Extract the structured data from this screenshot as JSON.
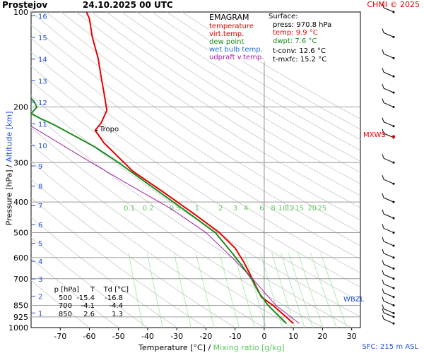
{
  "header": {
    "station": "Prostejov",
    "datetime": "24.10.2025 00 UTC",
    "credit": "CHMI © 2025"
  },
  "legend": {
    "title": "EMAGRAM",
    "items": [
      {
        "label": "temperature",
        "color": "#e60000"
      },
      {
        "label": "virt.temp.",
        "color": "#e60000"
      },
      {
        "label": "dew point",
        "color": "#1a8c1a"
      },
      {
        "label": "wet bulb temp.",
        "color": "#1e6fd8"
      },
      {
        "label": "udpraft v.temp.",
        "color": "#a020a0"
      }
    ]
  },
  "surface": {
    "title": "Surface:",
    "press": "press: 970.8 hPa",
    "temp": "temp: 9.9 °C",
    "dwpt": "dwpt: 7.6 °C",
    "tconv": "t-conv: 12.6 °C",
    "tmxfc": "t-mxfc: 15.2 °C"
  },
  "table": {
    "headers": [
      "p [hPa]",
      "T",
      "Td [°C]"
    ],
    "rows": [
      [
        "500",
        "-15.4",
        "-16.8"
      ],
      [
        "700",
        "-4.1",
        "-4.4"
      ],
      [
        "850",
        "2.6",
        "1.3"
      ]
    ]
  },
  "labels": {
    "tropo": "Tropo",
    "mxws": "MXWS",
    "wbzl": "WBZL",
    "sfc": "SFC: 215 m ASL",
    "xlabel_temp": "Temperature [°C]",
    "xlabel_sep": "/",
    "xlabel_mix": "Mixing ratio [g/kg]",
    "ylabel_p": "Pressure [hPa]",
    "ylabel_sep": "/",
    "ylabel_alt": "Altitude [km]"
  },
  "chart_data": {
    "type": "line",
    "x_ticks": [
      -70,
      -60,
      -50,
      -40,
      -30,
      -20,
      -10,
      0,
      10,
      20,
      30
    ],
    "xlim": [
      -80,
      33
    ],
    "y_ticks": [
      100,
      200,
      300,
      400,
      500,
      600,
      700,
      850,
      925,
      1000
    ],
    "ylim": [
      100,
      1000
    ],
    "y_scale": "log",
    "altitude_ticks_km": [
      "1",
      "2",
      "3",
      "4",
      "5",
      "6",
      "7",
      "8",
      "9",
      "10",
      "11",
      "12",
      "13",
      "14",
      "15",
      "16"
    ],
    "mixing_ratio_labels": [
      "0.1",
      "0.2",
      "0.5",
      "1",
      "2",
      "3",
      "4",
      "6",
      "8",
      "10",
      "12",
      "15",
      "20",
      "25"
    ],
    "series": [
      {
        "name": "temperature",
        "color": "#e60000",
        "points": [
          [
            10,
            970
          ],
          [
            3,
            850
          ],
          [
            -1,
            800
          ],
          [
            -4.1,
            700
          ],
          [
            -7,
            620
          ],
          [
            -10,
            560
          ],
          [
            -15.4,
            500
          ],
          [
            -25,
            430
          ],
          [
            -35,
            370
          ],
          [
            -45,
            320
          ],
          [
            -55,
            260
          ],
          [
            -58,
            237
          ],
          [
            -56,
            225
          ],
          [
            -54,
            205
          ],
          [
            -55,
            180
          ],
          [
            -56,
            160
          ],
          [
            -57,
            140
          ],
          [
            -59,
            120
          ],
          [
            -60,
            105
          ],
          [
            -61,
            100
          ]
        ]
      },
      {
        "name": "dew point",
        "color": "#1a8c1a",
        "points": [
          [
            7.6,
            970
          ],
          [
            1.3,
            850
          ],
          [
            -2,
            770
          ],
          [
            -4.4,
            700
          ],
          [
            -8,
            630
          ],
          [
            -11,
            580
          ],
          [
            -16.8,
            500
          ],
          [
            -28,
            420
          ],
          [
            -40,
            350
          ],
          [
            -50,
            300
          ],
          [
            -58,
            268
          ],
          [
            -64,
            250
          ],
          [
            -72,
            228
          ],
          [
            -77,
            217
          ],
          [
            -80,
            210
          ],
          [
            -78,
            200
          ],
          [
            -79,
            192
          ],
          [
            -80,
            188
          ]
        ]
      },
      {
        "name": "udpraft v.temp.",
        "color": "#a020a0",
        "points": [
          [
            12,
            970
          ],
          [
            4,
            850
          ],
          [
            -4,
            700
          ],
          [
            -11,
            600
          ],
          [
            -20,
            500
          ],
          [
            -32,
            420
          ],
          [
            -47,
            350
          ],
          [
            -62,
            290
          ],
          [
            -80,
            230
          ]
        ]
      }
    ],
    "grid": true
  }
}
